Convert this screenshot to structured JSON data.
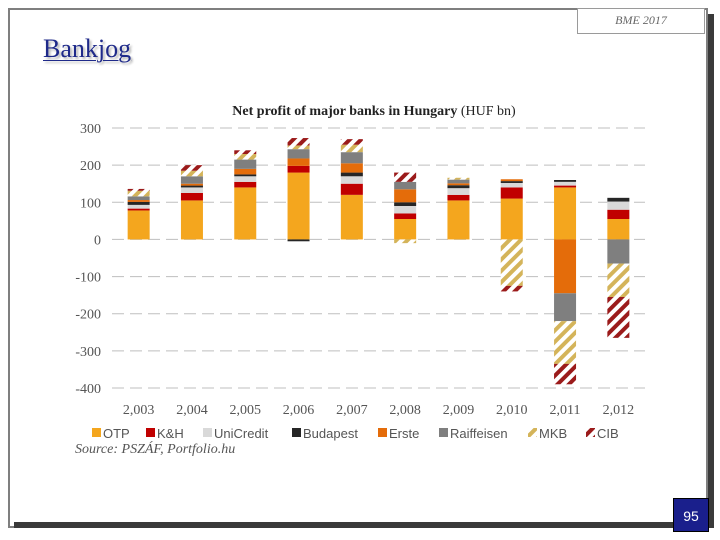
{
  "header": {
    "badge": "BME 2017"
  },
  "page_title": "Bankjog",
  "source": "Source: PSZÁF, Portfolio.hu",
  "page_number": "95",
  "colors": {
    "OTP": "#F4A61E",
    "K&H": "#C00000",
    "UniCredit": "#D9D9D9",
    "Budapest": "#262626",
    "Erste": "#E46C0A",
    "Raiffeisen": "#7F7F7F",
    "MKB": "#D4B45A",
    "CIB": "#9B1B1B",
    "gridline": "#BFBFBF"
  },
  "chart_data": {
    "type": "bar",
    "stacked": true,
    "title": "Net profit of major banks in Hungary",
    "title_bold_part": "Net profit of major banks in Hungary",
    "title_suffix": "(HUF bn)",
    "categories": [
      "2,003",
      "2,004",
      "2,005",
      "2,006",
      "2,007",
      "2,008",
      "2,009",
      "2,010",
      "2,011",
      "2,012"
    ],
    "y_ticks": [
      "300",
      "200",
      "100",
      "0",
      "-100",
      "-200",
      "-300",
      "-400"
    ],
    "y_tick_values": [
      300,
      200,
      100,
      0,
      -100,
      -200,
      -300,
      -400
    ],
    "ylim": [
      -400,
      300
    ],
    "grid": true,
    "gridline_style": "dashed",
    "legend_position": "bottom",
    "series": [
      {
        "name": "OTP",
        "pattern": "solid",
        "values": [
          78,
          105,
          140,
          180,
          120,
          55,
          105,
          110,
          140,
          55
        ]
      },
      {
        "name": "K&H",
        "pattern": "solid",
        "values": [
          5,
          20,
          15,
          18,
          30,
          15,
          15,
          30,
          5,
          25
        ]
      },
      {
        "name": "UniCredit",
        "pattern": "solid",
        "values": [
          10,
          15,
          15,
          0,
          20,
          20,
          18,
          12,
          10,
          22
        ]
      },
      {
        "name": "Budapest",
        "pattern": "solid",
        "values": [
          8,
          5,
          5,
          -5,
          10,
          10,
          8,
          5,
          5,
          10
        ]
      },
      {
        "name": "Erste",
        "pattern": "solid",
        "values": [
          5,
          5,
          15,
          20,
          25,
          35,
          5,
          5,
          -145,
          0
        ]
      },
      {
        "name": "Raiffeisen",
        "pattern": "solid",
        "values": [
          10,
          20,
          25,
          25,
          30,
          20,
          10,
          0,
          -75,
          -65
        ]
      },
      {
        "name": "MKB",
        "pattern": "diagonal",
        "values": [
          15,
          15,
          15,
          10,
          20,
          -10,
          5,
          -125,
          -115,
          -90
        ]
      },
      {
        "name": "CIB",
        "pattern": "diagonal",
        "values": [
          5,
          15,
          10,
          20,
          15,
          25,
          0,
          -15,
          -55,
          -110
        ]
      }
    ]
  }
}
